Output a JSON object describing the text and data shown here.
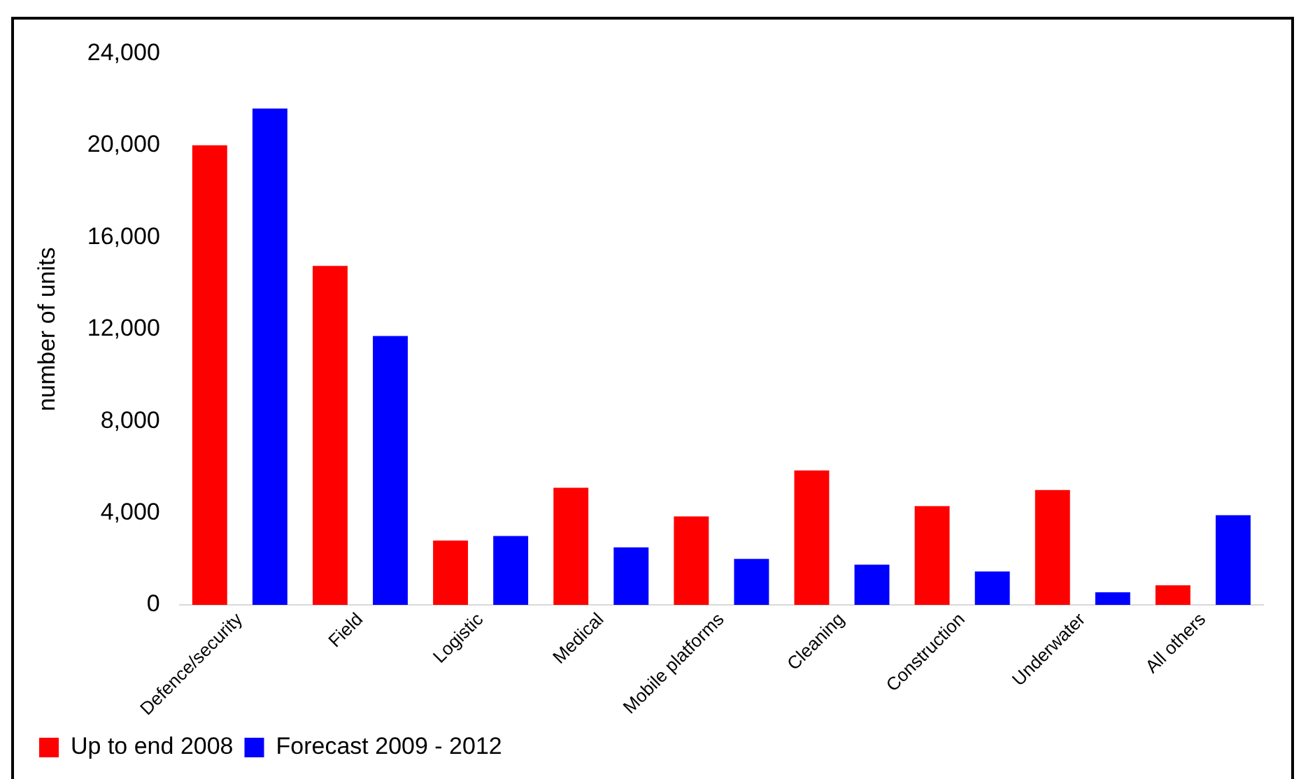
{
  "chart_data": {
    "type": "bar",
    "ylabel": "number of units",
    "categories": [
      "Defence/security",
      "Field",
      "Logistic",
      "Medical",
      "Mobile platforms",
      "Cleaning",
      "Construction",
      "Underwater",
      "All others"
    ],
    "series": [
      {
        "name": "Up to end 2008",
        "color": "#ff0000",
        "values": [
          20000,
          14750,
          2800,
          5100,
          3850,
          5850,
          4300,
          5000,
          850
        ]
      },
      {
        "name": "Forecast 2009 - 2012",
        "color": "#0000ff",
        "values": [
          21600,
          11700,
          3000,
          2500,
          2000,
          1750,
          1450,
          550,
          3900
        ]
      }
    ],
    "ylim": [
      0,
      24000
    ],
    "yticks": [
      0,
      {
        "value": 4000,
        "label": "4,000"
      },
      {
        "value": 8000,
        "label": "8,000"
      },
      {
        "value": 12000,
        "label": "12,000"
      },
      {
        "value": 16000,
        "label": "16,000"
      },
      {
        "value": 20000,
        "label": "20,000"
      },
      {
        "value": 24000,
        "label": "24,000"
      }
    ],
    "grid": false,
    "legend": "bottom"
  }
}
